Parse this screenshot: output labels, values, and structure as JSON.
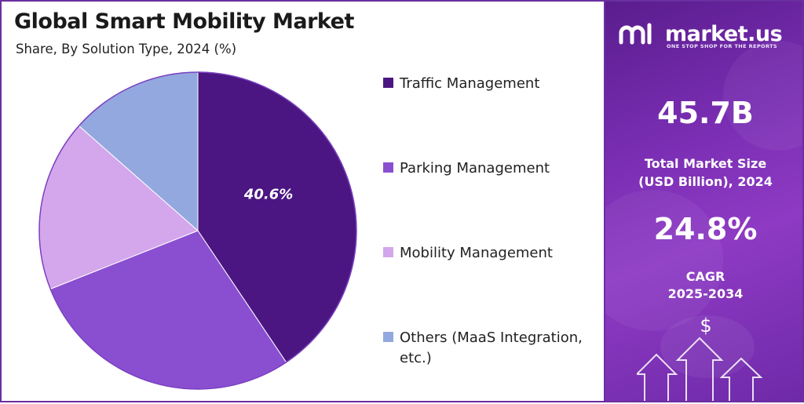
{
  "header": {
    "title": "Global Smart Mobility Market",
    "subtitle": "Share, By Solution Type, 2024 (%)"
  },
  "chart_data": {
    "type": "pie",
    "title": "Global Smart Mobility Market",
    "subtitle": "Share, By Solution Type, 2024 (%)",
    "categories": [
      "Traffic Management",
      "Parking Management",
      "Mobility Management",
      "Others (MaaS Integration, etc.)"
    ],
    "values": [
      40.6,
      28.4,
      17.5,
      13.5
    ],
    "colors": [
      "#4b1682",
      "#8a4fd1",
      "#d4a6ec",
      "#93a8de"
    ],
    "data_labels": [
      {
        "category": "Traffic Management",
        "text": "40.6%"
      }
    ],
    "legend_position": "right",
    "start_angle_deg": 0,
    "direction": "clockwise"
  },
  "legend": {
    "items": [
      {
        "label": "Traffic Management",
        "color": "#4b1682"
      },
      {
        "label": "Parking Management",
        "color": "#8a4fd1"
      },
      {
        "label": "Mobility Management",
        "color": "#d4a6ec"
      },
      {
        "label": "Others (MaaS Integration, etc.)",
        "color": "#93a8de"
      }
    ]
  },
  "sidebar": {
    "brand": {
      "name": "market.us",
      "tagline": "ONE STOP SHOP FOR THE REPORTS"
    },
    "market_size": {
      "value": "45.7B",
      "caption_line1": "Total Market Size",
      "caption_line2": "(USD Billion), 2024"
    },
    "cagr": {
      "value": "24.8%",
      "caption_line1": "CAGR",
      "caption_line2": "2025-2034"
    },
    "decor_icon": "dollar-growth-arrows-icon"
  }
}
